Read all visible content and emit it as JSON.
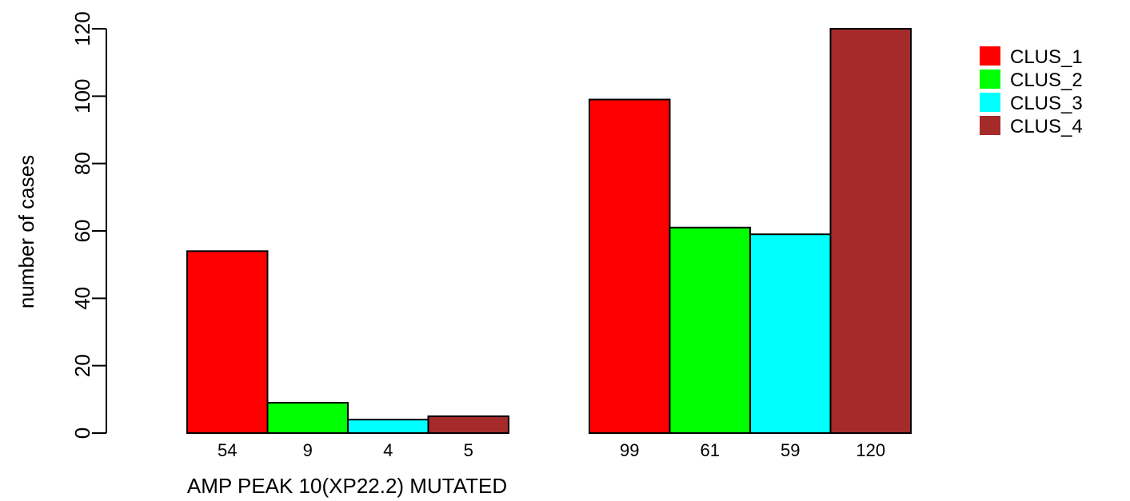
{
  "chart_data": {
    "type": "bar",
    "xlabel": "AMP PEAK 10(XP22.2) MUTATED",
    "ylabel": "number of cases",
    "ylim": [
      0,
      120
    ],
    "yticks": [
      0,
      20,
      40,
      60,
      80,
      100,
      120
    ],
    "grid": false,
    "legend_position": "top-right",
    "groups": [
      {
        "bars": [
          {
            "series": "CLUS_1",
            "value": 54,
            "label": "54"
          },
          {
            "series": "CLUS_2",
            "value": 9,
            "label": "9"
          },
          {
            "series": "CLUS_3",
            "value": 4,
            "label": "4"
          },
          {
            "series": "CLUS_4",
            "value": 5,
            "label": "5"
          }
        ]
      },
      {
        "bars": [
          {
            "series": "CLUS_1",
            "value": 99,
            "label": "99"
          },
          {
            "series": "CLUS_2",
            "value": 61,
            "label": "61"
          },
          {
            "series": "CLUS_3",
            "value": 59,
            "label": "59"
          },
          {
            "series": "CLUS_4",
            "value": 120,
            "label": "120"
          }
        ]
      }
    ],
    "series": [
      {
        "name": "CLUS_1",
        "color": "#ff0000"
      },
      {
        "name": "CLUS_2",
        "color": "#00ff00"
      },
      {
        "name": "CLUS_3",
        "color": "#00ffff"
      },
      {
        "name": "CLUS_4",
        "color": "#a52a2a"
      }
    ]
  }
}
